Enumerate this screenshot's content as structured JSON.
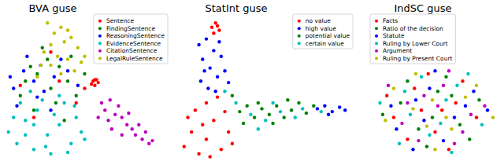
{
  "chart_data": [
    {
      "type": "scatter",
      "title": "BVA guse",
      "xlim": [
        0,
        100
      ],
      "ylim": [
        0,
        100
      ],
      "tick_labels": false,
      "legend": "upper right",
      "series": [
        {
          "name": "Sentence",
          "color": "#ff0000",
          "x": [
            55,
            56,
            57,
            54,
            58,
            56,
            20,
            35,
            45,
            12,
            30,
            50
          ],
          "values": [
            55,
            52,
            56,
            53,
            54,
            56,
            30,
            55,
            40,
            52,
            75,
            50
          ]
        },
        {
          "name": "FindingSentence",
          "color": "#008000",
          "x": [
            15,
            22,
            30,
            35,
            12,
            40,
            28,
            45,
            20,
            38,
            50,
            25,
            33,
            18,
            42
          ],
          "values": [
            55,
            60,
            50,
            65,
            45,
            55,
            70,
            45,
            35,
            28,
            60,
            78,
            40,
            65,
            72
          ]
        },
        {
          "name": "ReasoningSentence",
          "color": "#0000ff",
          "x": [
            8,
            14,
            20,
            26,
            32,
            10,
            36,
            24,
            16,
            40,
            30,
            46,
            6,
            22
          ],
          "values": [
            50,
            62,
            55,
            48,
            58,
            38,
            70,
            66,
            72,
            62,
            35,
            52,
            58,
            44
          ]
        },
        {
          "name": "EvidenceSentence",
          "color": "#00bfbf",
          "x": [
            5,
            10,
            15,
            20,
            22,
            28,
            30,
            35,
            38,
            42,
            45,
            48,
            12,
            18,
            25,
            32,
            8,
            40,
            50,
            15,
            27,
            35,
            44,
            20
          ],
          "values": [
            20,
            12,
            28,
            8,
            35,
            18,
            5,
            25,
            40,
            12,
            30,
            20,
            40,
            48,
            42,
            32,
            30,
            6,
            15,
            18,
            10,
            45,
            38,
            25
          ]
        },
        {
          "name": "CitationSentence",
          "color": "#bf00bf",
          "x": [
            60,
            62,
            65,
            68,
            70,
            64,
            72,
            75,
            78,
            80,
            84,
            88,
            82,
            76,
            86,
            90,
            66,
            72,
            58
          ],
          "values": [
            40,
            35,
            42,
            32,
            38,
            28,
            30,
            25,
            22,
            18,
            15,
            12,
            25,
            33,
            20,
            14,
            22,
            18,
            30
          ]
        },
        {
          "name": "LegalRuleSentence",
          "color": "#bfbf00",
          "x": [
            28,
            32,
            36,
            30,
            38,
            42,
            26,
            34,
            40,
            46,
            24,
            44,
            48,
            36,
            30,
            40,
            22,
            50
          ],
          "values": [
            95,
            88,
            92,
            80,
            82,
            85,
            75,
            72,
            70,
            78,
            66,
            62,
            68,
            60,
            66,
            90,
            58,
            72
          ]
        }
      ]
    },
    {
      "type": "scatter",
      "title": "StatInt guse",
      "xlim": [
        0,
        100
      ],
      "ylim": [
        0,
        100
      ],
      "tick_labels": false,
      "legend": "upper right",
      "series": [
        {
          "name": "no value",
          "color": "#ff0000",
          "x": [
            8,
            12,
            16,
            20,
            24,
            28,
            32,
            14,
            20,
            26,
            10,
            30,
            18,
            34,
            22,
            23,
            25,
            27,
            24,
            26
          ],
          "values": [
            10,
            20,
            5,
            15,
            28,
            8,
            20,
            35,
            40,
            44,
            30,
            34,
            25,
            12,
            3,
            92,
            95,
            90,
            88,
            93
          ]
        },
        {
          "name": "high value",
          "color": "#0000ff",
          "x": [
            16,
            20,
            24,
            18,
            28,
            22,
            26,
            30,
            17,
            21,
            25,
            32,
            19,
            27,
            80,
            84,
            88,
            92,
            95,
            86
          ],
          "values": [
            80,
            84,
            76,
            70,
            72,
            64,
            58,
            62,
            55,
            50,
            48,
            54,
            62,
            82,
            36,
            38,
            34,
            37,
            35,
            32
          ]
        },
        {
          "name": "potential value",
          "color": "#008000",
          "x": [
            38,
            42,
            46,
            50,
            54,
            58,
            62,
            66,
            70,
            74,
            78,
            40,
            48,
            56,
            64,
            34
          ],
          "values": [
            34,
            38,
            30,
            36,
            32,
            38,
            30,
            35,
            40,
            33,
            38,
            26,
            40,
            26,
            42,
            45
          ]
        },
        {
          "name": "certain value",
          "color": "#00bfbf",
          "x": [
            44,
            52,
            60,
            68,
            48,
            72,
            36,
            56,
            30,
            82
          ],
          "values": [
            32,
            28,
            34,
            30,
            22,
            36,
            40,
            40,
            48,
            34
          ]
        }
      ]
    },
    {
      "type": "scatter",
      "title": "IndSC guse",
      "xlim": [
        0,
        100
      ],
      "ylim": [
        0,
        100
      ],
      "tick_labels": false,
      "legend": "upper left",
      "series": [
        {
          "name": "Facts",
          "color": "#ff0000",
          "x": [
            20,
            35,
            50,
            65,
            80,
            45,
            30,
            60,
            15,
            70,
            55,
            40
          ],
          "values": [
            30,
            50,
            20,
            40,
            30,
            60,
            15,
            8,
            45,
            55,
            35,
            35
          ]
        },
        {
          "name": "Ratio of the decision",
          "color": "#008000",
          "x": [
            25,
            38,
            52,
            68,
            82,
            44,
            58,
            12,
            75,
            30,
            62,
            48
          ],
          "values": [
            40,
            22,
            48,
            25,
            42,
            10,
            58,
            32,
            15,
            55,
            45,
            30
          ]
        },
        {
          "name": "Statute",
          "color": "#0000ff",
          "x": [
            22,
            36,
            50,
            64,
            78,
            42,
            56,
            18,
            72,
            34,
            88,
            46
          ],
          "values": [
            22,
            42,
            62,
            30,
            48,
            28,
            14,
            38,
            38,
            8,
            35,
            50
          ]
        },
        {
          "name": "Ruling by Lower Court",
          "color": "#00bfbf",
          "x": [
            28,
            40,
            54,
            66,
            84,
            32,
            58,
            10,
            74,
            46,
            62,
            24
          ],
          "values": [
            48,
            58,
            26,
            52,
            25,
            32,
            42,
            40,
            60,
            18,
            6,
            12
          ]
        },
        {
          "name": "Argument",
          "color": "#bf00bf",
          "x": [
            26,
            42,
            56,
            70,
            86,
            38,
            52,
            16,
            76,
            60,
            30,
            64
          ],
          "values": [
            26,
            45,
            52,
            20,
            38,
            14,
            38,
            52,
            32,
            62,
            40,
            12
          ]
        },
        {
          "name": "Ruling by Present Court",
          "color": "#bfbf00",
          "x": [
            20,
            34,
            48,
            62,
            80,
            44,
            58,
            14,
            72,
            36,
            92,
            50
          ],
          "values": [
            50,
            36,
            42,
            22,
            52,
            24,
            30,
            28,
            44,
            60,
            30,
            8
          ]
        }
      ]
    }
  ]
}
